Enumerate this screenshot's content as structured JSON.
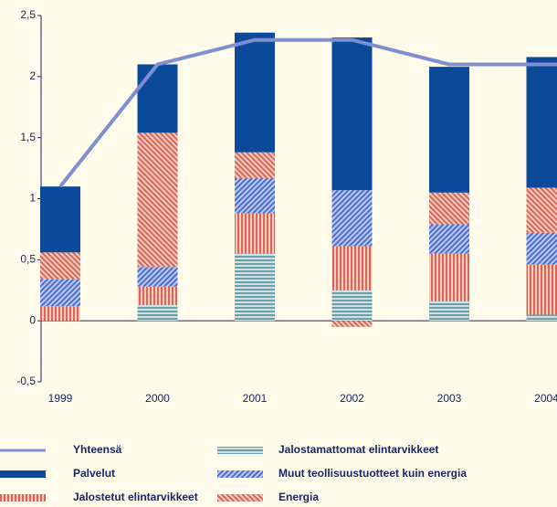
{
  "chart_data": {
    "type": "bar",
    "categories": [
      "1999",
      "2000",
      "2001",
      "2002",
      "2003",
      "2004"
    ],
    "ylim": [
      -0.5,
      2.5
    ],
    "yticks": [
      {
        "value": -0.5,
        "label": "-0,5"
      },
      0,
      {
        "value": 0.5,
        "label": "0,5"
      },
      1,
      {
        "value": 1.5,
        "label": "1,5"
      },
      2,
      {
        "value": 2.5,
        "label": "2,5"
      }
    ],
    "series": [
      {
        "name": "Jalostamattomat elintarvikkeet",
        "color": "#6e9ea8",
        "values": [
          0,
          0.13,
          0.55,
          0.25,
          0.16,
          0.05
        ]
      },
      {
        "name": "Jalostetut elintarvikkeet",
        "color": "#d4675a",
        "values": [
          0.12,
          0.15,
          0.33,
          0.36,
          0.39,
          0.41
        ]
      },
      {
        "name": "Muut teollisuustuotteet kuin energia",
        "color": "#4d6dcc",
        "values": [
          0.22,
          0.16,
          0.29,
          0.46,
          0.24,
          0.26
        ]
      },
      {
        "name": "Energia",
        "color": "#d4675a",
        "values": [
          0.22,
          1.1,
          0.21,
          -0.05,
          0.26,
          0.37
        ]
      },
      {
        "name": "Palvelut",
        "color": "#0b4a9b",
        "values": [
          0.54,
          0.56,
          0.98,
          1.25,
          1.03,
          1.07
        ]
      },
      {
        "name": "Yhteensä",
        "type": "line",
        "color": "#7f8fcf",
        "values": [
          1.1,
          2.1,
          2.3,
          2.3,
          2.1,
          2.1
        ]
      }
    ],
    "legend_order": [
      5,
      4,
      1,
      0,
      2,
      3
    ]
  }
}
